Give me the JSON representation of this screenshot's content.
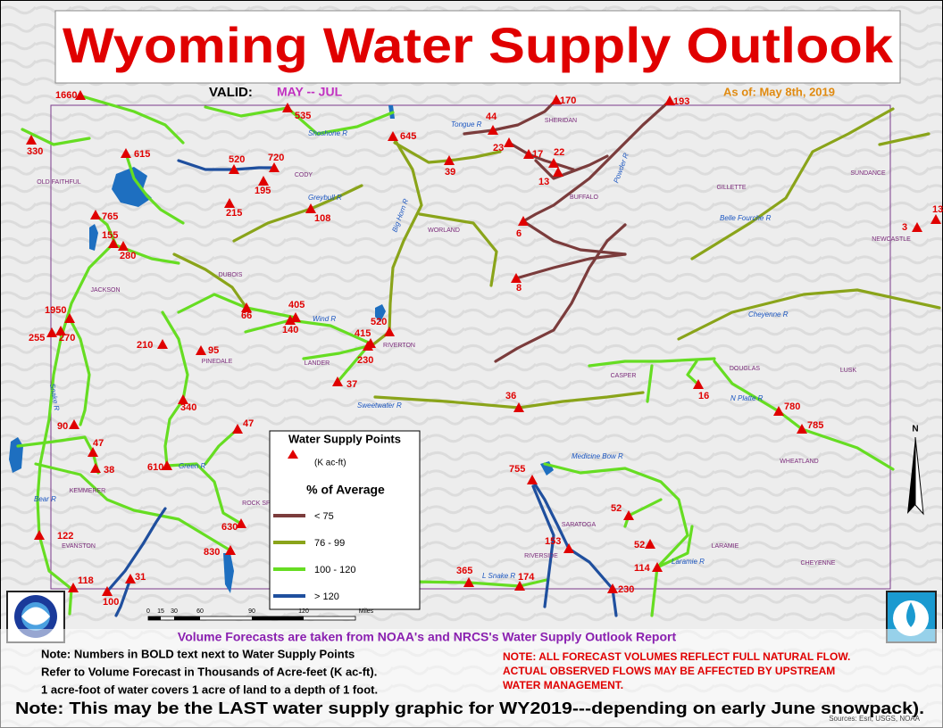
{
  "header": {
    "title": "Wyoming Water Supply Outlook",
    "valid_label": "VALID:",
    "valid_period": "MAY --  JUL",
    "as_of": "As of:  May 8th, 2019"
  },
  "legend": {
    "title": "Water Supply Points",
    "point_unit": "(K ac-ft)",
    "class_title": "% of Average",
    "classes": [
      {
        "label": "< 75",
        "color": "#7b3c3c"
      },
      {
        "label": "76 - 99",
        "color": "#8aa41a"
      },
      {
        "label": "100 - 120",
        "color": "#66dd22"
      },
      {
        "label": "> 120",
        "color": "#1f4f9e"
      }
    ]
  },
  "points": [
    1660,
    535,
    330,
    615,
    520,
    720,
    195,
    645,
    44,
    170,
    193,
    23,
    17,
    22,
    13,
    39,
    215,
    108,
    765,
    155,
    280,
    6,
    3,
    13,
    8,
    66,
    405,
    140,
    1950,
    255,
    270,
    520,
    415,
    230,
    210,
    95,
    37,
    36,
    16,
    780,
    785,
    340,
    47,
    90,
    47,
    38,
    610,
    755,
    52,
    630,
    122,
    52,
    153,
    830,
    114,
    365,
    174,
    118,
    31,
    100,
    230
  ],
  "towns": [
    "OLD FAITHFUL",
    "CODY",
    "SHERIDAN",
    "BUFFALO",
    "WORLAND",
    "GILLETTE",
    "SUNDANCE",
    "NEWCASTLE",
    "JACKSON",
    "DUBOIS",
    "PINEDALE",
    "LANDER",
    "RIVERTON",
    "CASPER",
    "DOUGLAS",
    "LUSK",
    "KEMMERER",
    "ROCK SPRINGS",
    "SARATOGA",
    "RIVERSIDE",
    "LARAMIE",
    "WHEATLAND",
    "CHEYENNE",
    "EVANSTON"
  ],
  "rivers": [
    "Shoshone R",
    "Big Horn R",
    "Wind R",
    "N Platte R",
    "Green R",
    "Powder R",
    "Laramie R",
    "Medicine Bow R",
    "Sweetwater R",
    "Cheyenne R",
    "Belle Fourche R",
    "Snake R",
    "Bear R",
    "L Snake R",
    "Tongue R",
    "Greybull R"
  ],
  "scale_bar": [
    "0",
    "15",
    "30",
    "60",
    "90",
    "120",
    "Miles"
  ],
  "north": "N",
  "notes": {
    "source_line": "Volume Forecasts are taken from NOAA's and NRCS's Water Supply Outlook Report",
    "left": [
      "Note:  Numbers in BOLD text next to Water Supply Points",
      "Refer to Volume Forecast in Thousands of Acre-feet (K ac-ft).",
      "1 acre-foot of water covers 1 acre of land to a depth of 1 foot."
    ],
    "right": [
      "NOTE:  ALL FORECAST VOLUMES REFLECT FULL NATURAL FLOW.",
      "ACTUAL OBSERVED FLOWS MAY BE AFFECTED BY UPSTREAM",
      "WATER MANAGEMENT."
    ],
    "bottom": "Note:  This may be the LAST water supply graphic for WY2019---depending on early June snowpack).",
    "sources": "Sources:  Esri, USGS, NOAA"
  }
}
